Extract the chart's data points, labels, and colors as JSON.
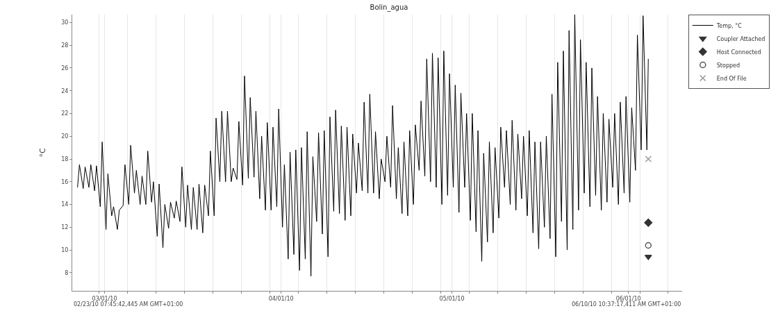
{
  "chart_data": {
    "type": "line",
    "title": "Bolin_agua",
    "ylabel": "°C",
    "annotations": [
      "02/23/10 07:45:42,445 AM GMT+01:00",
      "06/10/10 10:37:17,411 AM GMT+01:00"
    ],
    "xlim": [
      "--02-23T07:45",
      "--06-10T10:37"
    ],
    "xticks": [
      {
        "value": "--02-28",
        "label": null
      },
      {
        "value": "--03-01",
        "label": "03/01/10"
      },
      {
        "value": "--03-05",
        "label": null
      },
      {
        "value": "--03-10",
        "label": null
      },
      {
        "value": "--03-15",
        "label": null
      },
      {
        "value": "--03-20",
        "label": null
      },
      {
        "value": "--03-25",
        "label": null
      },
      {
        "value": "--03-30",
        "label": null
      },
      {
        "value": "--04-01",
        "label": "04/01/10"
      },
      {
        "value": "--04-04",
        "label": null
      },
      {
        "value": "--04-09",
        "label": null
      },
      {
        "value": "--04-14",
        "label": null
      },
      {
        "value": "--04-19",
        "label": null
      },
      {
        "value": "--04-24",
        "label": null
      },
      {
        "value": "--04-29",
        "label": null
      },
      {
        "value": "--05-01",
        "label": "05/01/10"
      },
      {
        "value": "--05-04",
        "label": null
      },
      {
        "value": "--05-09",
        "label": null
      },
      {
        "value": "--05-14",
        "label": null
      },
      {
        "value": "--05-19",
        "label": null
      },
      {
        "value": "--05-24",
        "label": null
      },
      {
        "value": "--05-29",
        "label": null
      },
      {
        "value": "--06-01",
        "label": "06/01/10"
      },
      {
        "value": "--06-03",
        "label": null
      },
      {
        "value": "--06-08",
        "label": null
      }
    ],
    "ylim": [
      6.4,
      30.7
    ],
    "yticks": [
      8,
      10,
      12,
      14,
      16,
      18,
      20,
      22,
      24,
      26,
      28,
      30
    ],
    "grid": "x",
    "legend": "top right",
    "series": [
      {
        "name": "Temp, °C",
        "color": "#000000",
        "marker": "none",
        "x": [
          "--02-24T06:00",
          "--02-24T14:00",
          "--02-25T06:00",
          "--02-25T14:00",
          "--02-26T06:00",
          "--02-26T14:00",
          "--02-27T06:00",
          "--02-27T14:00",
          "--02-28T06:00",
          "--02-28T14:00",
          "--03-01T06:00",
          "--03-01T14:00",
          "--03-02T06:00",
          "--03-02T14:00",
          "--03-03T06:00",
          "--03-03T14:00",
          "--03-04T06:00",
          "--03-04T14:00",
          "--03-05T06:00",
          "--03-05T14:00",
          "--03-06T06:00",
          "--03-06T14:00",
          "--03-07T06:00",
          "--03-07T14:00",
          "--03-08T06:00",
          "--03-08T14:00",
          "--03-09T06:00",
          "--03-09T14:00",
          "--03-10T06:00",
          "--03-10T14:00",
          "--03-11T06:00",
          "--03-11T14:00",
          "--03-12T06:00",
          "--03-12T14:00",
          "--03-13T06:00",
          "--03-13T14:00",
          "--03-14T06:00",
          "--03-14T14:00",
          "--03-15T06:00",
          "--03-15T14:00",
          "--03-16T06:00",
          "--03-16T14:00",
          "--03-17T06:00",
          "--03-17T14:00",
          "--03-18T06:00",
          "--03-18T14:00",
          "--03-19T06:00",
          "--03-19T14:00",
          "--03-20T06:00",
          "--03-20T14:00",
          "--03-21T06:00",
          "--03-21T14:00",
          "--03-22T06:00",
          "--03-22T14:00",
          "--03-23T06:00",
          "--03-23T14:00",
          "--03-24T06:00",
          "--03-24T14:00",
          "--03-25T06:00",
          "--03-25T14:00",
          "--03-26T06:00",
          "--03-26T14:00",
          "--03-27T06:00",
          "--03-27T14:00",
          "--03-28T06:00",
          "--03-28T14:00",
          "--03-29T06:00",
          "--03-29T14:00",
          "--03-30T06:00",
          "--03-30T14:00",
          "--03-31T06:00",
          "--03-31T14:00",
          "--04-01T06:00",
          "--04-01T14:00",
          "--04-02T06:00",
          "--04-02T14:00",
          "--04-03T06:00",
          "--04-03T14:00",
          "--04-04T06:00",
          "--04-04T14:00",
          "--04-05T06:00",
          "--04-05T14:00",
          "--04-06T06:00",
          "--04-06T14:00",
          "--04-07T06:00",
          "--04-07T14:00",
          "--04-08T06:00",
          "--04-08T14:00",
          "--04-09T06:00",
          "--04-09T14:00",
          "--04-10T06:00",
          "--04-10T14:00",
          "--04-11T06:00",
          "--04-11T14:00",
          "--04-12T06:00",
          "--04-12T14:00",
          "--04-13T06:00",
          "--04-13T14:00",
          "--04-14T06:00",
          "--04-14T14:00",
          "--04-15T06:00",
          "--04-15T14:00",
          "--04-16T06:00",
          "--04-16T14:00",
          "--04-17T06:00",
          "--04-17T14:00",
          "--04-18T06:00",
          "--04-18T14:00",
          "--04-19T06:00",
          "--04-19T14:00",
          "--04-20T06:00",
          "--04-20T14:00",
          "--04-21T06:00",
          "--04-21T14:00",
          "--04-22T06:00",
          "--04-22T14:00",
          "--04-23T06:00",
          "--04-23T14:00",
          "--04-24T06:00",
          "--04-24T14:00",
          "--04-25T06:00",
          "--04-25T14:00",
          "--04-26T06:00",
          "--04-26T14:00",
          "--04-27T06:00",
          "--04-27T14:00",
          "--04-28T06:00",
          "--04-28T14:00",
          "--04-29T06:00",
          "--04-29T14:00",
          "--04-30T06:00",
          "--04-30T14:00",
          "--05-01T06:00",
          "--05-01T14:00",
          "--05-02T06:00",
          "--05-02T14:00",
          "--05-03T06:00",
          "--05-03T14:00",
          "--05-04T06:00",
          "--05-04T14:00",
          "--05-05T06:00",
          "--05-05T14:00",
          "--05-06T06:00",
          "--05-06T14:00",
          "--05-07T06:00",
          "--05-07T14:00",
          "--05-08T06:00",
          "--05-08T14:00",
          "--05-09T06:00",
          "--05-09T14:00",
          "--05-10T06:00",
          "--05-10T14:00",
          "--05-11T06:00",
          "--05-11T14:00",
          "--05-12T06:00",
          "--05-12T14:00",
          "--05-13T06:00",
          "--05-13T14:00",
          "--05-14T06:00",
          "--05-14T14:00",
          "--05-15T06:00",
          "--05-15T14:00",
          "--05-16T06:00",
          "--05-16T14:00",
          "--05-17T06:00",
          "--05-17T14:00",
          "--05-18T06:00",
          "--05-18T14:00",
          "--05-19T06:00",
          "--05-19T14:00",
          "--05-20T06:00",
          "--05-20T14:00",
          "--05-21T06:00",
          "--05-21T14:00",
          "--05-22T06:00",
          "--05-22T14:00",
          "--05-23T06:00",
          "--05-23T14:00",
          "--05-24T06:00",
          "--05-24T14:00",
          "--05-25T06:00",
          "--05-25T14:00",
          "--05-26T06:00",
          "--05-26T14:00",
          "--05-27T06:00",
          "--05-27T14:00",
          "--05-28T06:00",
          "--05-28T14:00",
          "--05-29T06:00",
          "--05-29T14:00",
          "--05-30T06:00",
          "--05-30T14:00",
          "--05-31T06:00",
          "--05-31T14:00",
          "--06-01T06:00",
          "--06-01T14:00",
          "--06-02T06:00",
          "--06-02T14:00",
          "--06-03T06:00",
          "--06-03T14:00",
          "--06-04T06:00",
          "--06-04T12:00"
        ],
        "values": [
          15.5,
          17.5,
          15.4,
          17.3,
          15.5,
          17.5,
          15.2,
          17.4,
          13.8,
          19.5,
          11.8,
          16.7,
          13.0,
          13.8,
          11.8,
          13.5,
          13.9,
          17.5,
          14.0,
          19.2,
          15.0,
          17.0,
          14.0,
          16.5,
          14.0,
          18.7,
          14.2,
          16.0,
          11.2,
          15.8,
          10.2,
          14.0,
          11.9,
          14.2,
          12.8,
          14.3,
          12.5,
          17.3,
          12.0,
          15.7,
          11.8,
          15.5,
          11.8,
          15.8,
          11.5,
          15.7,
          13.0,
          18.7,
          13.0,
          21.6,
          16.0,
          22.2,
          16.0,
          22.2,
          16.0,
          17.2,
          16.2,
          21.3,
          15.7,
          25.3,
          16.3,
          23.4,
          16.4,
          22.2,
          14.5,
          20.0,
          13.5,
          21.2,
          13.5,
          20.8,
          13.8,
          22.4,
          12.0,
          17.5,
          9.2,
          18.6,
          9.6,
          18.8,
          8.2,
          19.0,
          9.2,
          20.4,
          7.7,
          18.2,
          12.5,
          20.3,
          11.4,
          20.5,
          9.4,
          21.7,
          13.4,
          22.3,
          13.2,
          20.9,
          12.6,
          20.8,
          13.0,
          20.2,
          15.0,
          19.4,
          15.2,
          23.0,
          15.0,
          23.7,
          15.0,
          20.4,
          14.5,
          18.0,
          16.0,
          20.0,
          15.5,
          22.7,
          14.5,
          19.0,
          13.2,
          19.5,
          13.0,
          20.5,
          14.0,
          21.0,
          17.0,
          23.1,
          16.5,
          26.8,
          16.0,
          27.3,
          15.5,
          26.9,
          14.0,
          27.5,
          14.8,
          25.5,
          15.5,
          24.5,
          13.3,
          23.8,
          15.5,
          22.0,
          12.6,
          22.0,
          11.6,
          20.5,
          9.0,
          18.5,
          10.7,
          19.5,
          11.5,
          19.0,
          12.8,
          20.8,
          15.5,
          20.5,
          14.0,
          21.4,
          13.5,
          20.2,
          14.5,
          20.0,
          13.0,
          20.5,
          11.5,
          19.5,
          10.1,
          19.5,
          12.0,
          20.0,
          11.0,
          23.7,
          9.4,
          26.5,
          12.5,
          27.5,
          10.0,
          29.3,
          11.8,
          30.7,
          13.5,
          28.5,
          15.0,
          26.5,
          13.8,
          26.0,
          14.8,
          23.5,
          13.5,
          22.0,
          14.2,
          21.5,
          15.5,
          22.0,
          14.0,
          23.0,
          15.0,
          23.5,
          14.2,
          22.5,
          17.0,
          28.9,
          18.8,
          30.6,
          18.8,
          26.8
        ]
      },
      {
        "name": "Coupler Attached",
        "type": "scatter",
        "color": "#333333",
        "marker": "triangle",
        "x": [
          "--06-04T12:00"
        ],
        "values": [
          9.4
        ]
      },
      {
        "name": "Host Connected",
        "type": "scatter",
        "color": "#333333",
        "marker": "diamond",
        "x": [
          "--06-04T12:00"
        ],
        "values": [
          12.4
        ]
      },
      {
        "name": "Stopped",
        "type": "scatter",
        "color": "#555555",
        "marker": "circle",
        "x": [
          "--06-04T12:00"
        ],
        "values": [
          10.4
        ]
      },
      {
        "name": "End Of File",
        "type": "scatter",
        "color": "#999999",
        "marker": "cross",
        "x": [
          "--06-04T12:00"
        ],
        "values": [
          18.0
        ]
      }
    ]
  }
}
